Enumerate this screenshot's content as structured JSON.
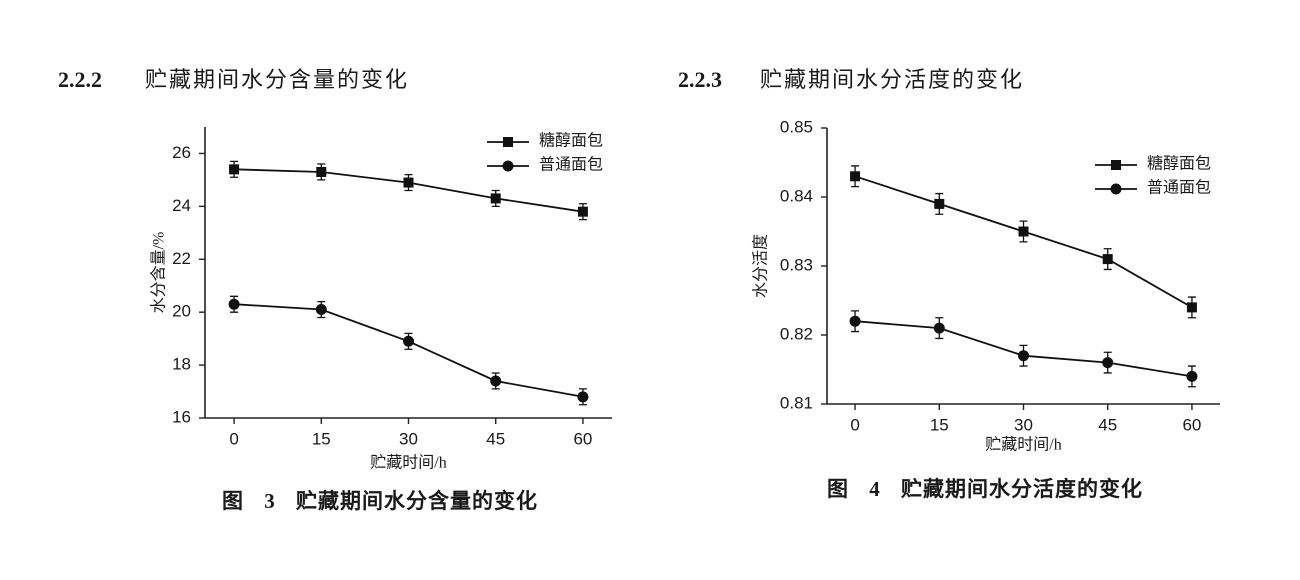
{
  "chart_data": [
    {
      "type": "line",
      "section": "2.2.2",
      "section_title": "贮藏期间水分含量的变化",
      "caption": "图 3 贮藏期间水分含量的变化",
      "xlabel": "贮藏时间/h",
      "ylabel": "水分含量/%",
      "x": [
        0,
        15,
        30,
        45,
        60
      ],
      "xlim": [
        -5,
        65
      ],
      "xticks": [
        0,
        15,
        30,
        45,
        60
      ],
      "ylim": [
        16,
        27
      ],
      "yticks": [
        16,
        18,
        20,
        22,
        24,
        26
      ],
      "grid": false,
      "legend": "upper right",
      "series": [
        {
          "name": "糖醇面包",
          "color": "#111111",
          "marker": "square",
          "values": [
            25.4,
            25.3,
            24.9,
            24.3,
            23.8
          ],
          "errors": [
            0.3,
            0.3,
            0.3,
            0.3,
            0.3
          ]
        },
        {
          "name": "普通面包",
          "color": "#111111",
          "marker": "circle",
          "values": [
            20.3,
            20.1,
            18.9,
            17.4,
            16.8
          ],
          "errors": [
            0.3,
            0.3,
            0.3,
            0.3,
            0.3
          ]
        }
      ]
    },
    {
      "type": "line",
      "section": "2.2.3",
      "section_title": "贮藏期间水分活度的变化",
      "caption": "图 4 贮藏期间水分活度的变化",
      "xlabel": "贮藏时间/h",
      "ylabel": "水分活度",
      "x": [
        0,
        15,
        30,
        45,
        60
      ],
      "xlim": [
        -5,
        65
      ],
      "xticks": [
        0,
        15,
        30,
        45,
        60
      ],
      "ylim": [
        0.81,
        0.85
      ],
      "yticks": [
        0.81,
        0.82,
        0.83,
        0.84,
        0.85
      ],
      "grid": false,
      "legend": "upper right",
      "series": [
        {
          "name": "糖醇面包",
          "color": "#111111",
          "marker": "square",
          "values": [
            0.843,
            0.839,
            0.835,
            0.831,
            0.824
          ],
          "errors": [
            0.0015,
            0.0015,
            0.0015,
            0.0015,
            0.0015
          ]
        },
        {
          "name": "普通面包",
          "color": "#111111",
          "marker": "circle",
          "values": [
            0.822,
            0.821,
            0.817,
            0.816,
            0.814
          ],
          "errors": [
            0.0015,
            0.0015,
            0.0015,
            0.0015,
            0.0015
          ]
        }
      ]
    }
  ]
}
